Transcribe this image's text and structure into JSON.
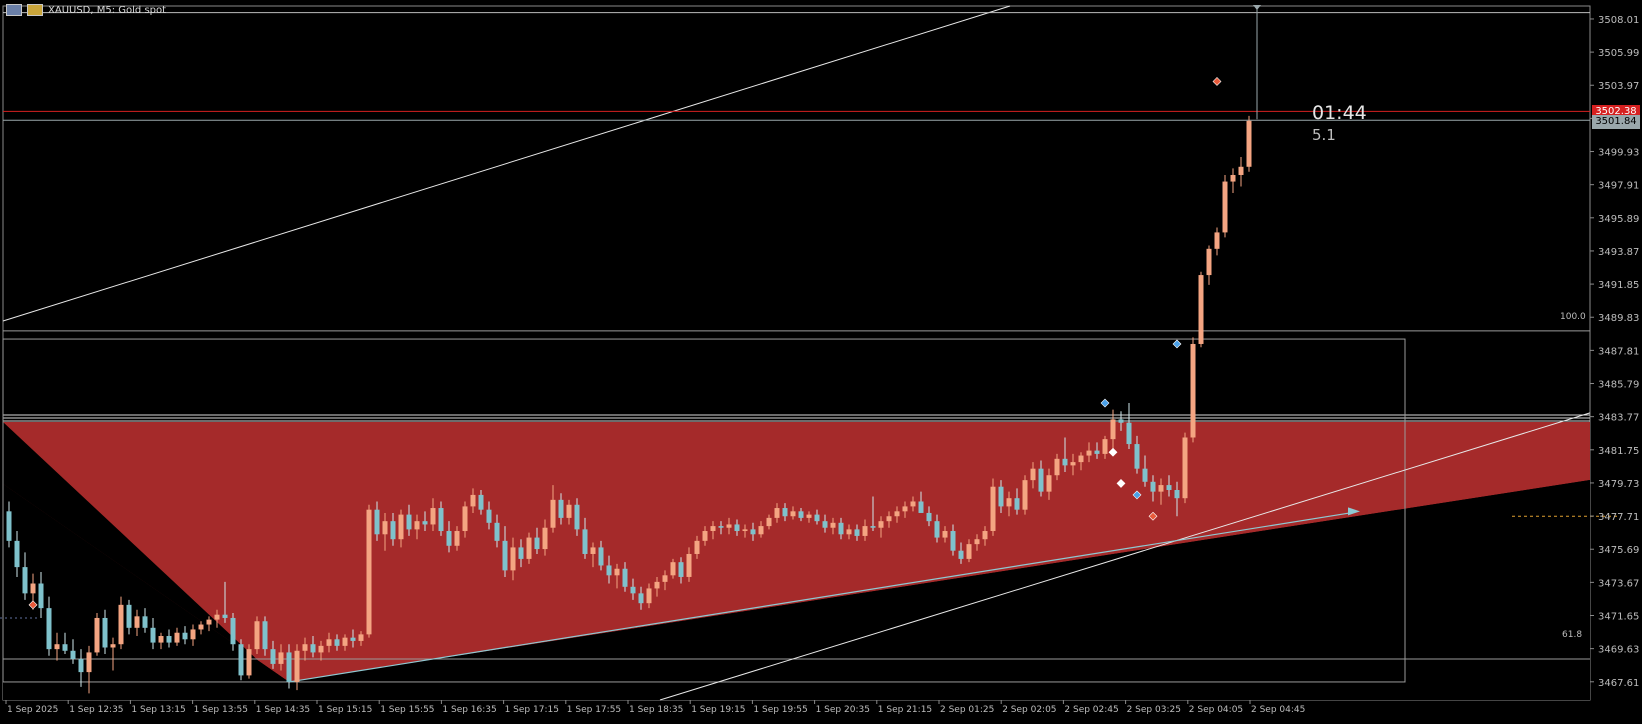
{
  "chart_header": {
    "symbol": "XAUUSD, M5:  Gold spot"
  },
  "timer": {
    "countdown": "01:44",
    "spread": "5.1"
  },
  "price_tags": {
    "ask": "3502.38",
    "bid": "3501.84"
  },
  "fib_labels": {
    "level_100": "100.0",
    "level_618": "61.8"
  },
  "colors": {
    "background": "#000000",
    "bull_candle": "#f4a582",
    "bear_candle": "#7fc2cc",
    "zone_fill": "#a52a2a",
    "ask_line": "#d62020",
    "grid_text": "#bdbdbd"
  },
  "chart_data": {
    "type": "candlestick",
    "y_ticks": [
      "3508.01",
      "3505.99",
      "3503.97",
      "3501.95",
      "3499.93",
      "3497.91",
      "3495.89",
      "3493.87",
      "3491.85",
      "3489.83",
      "3487.81",
      "3485.79",
      "3483.77",
      "3481.75",
      "3479.73",
      "3477.71",
      "3475.69",
      "3473.67",
      "3471.65",
      "3469.63",
      "3467.61"
    ],
    "x_ticks": [
      "1 Sep 2025",
      "1 Sep 12:35",
      "1 Sep 13:15",
      "1 Sep 13:55",
      "1 Sep 14:35",
      "1 Sep 15:15",
      "1 Sep 15:55",
      "1 Sep 16:35",
      "1 Sep 17:15",
      "1 Sep 17:55",
      "1 Sep 18:35",
      "1 Sep 19:15",
      "1 Sep 19:55",
      "1 Sep 20:35",
      "1 Sep 21:15",
      "2 Sep 01:25",
      "2 Sep 02:05",
      "2 Sep 02:45",
      "2 Sep 03:25",
      "2 Sep 04:05",
      "2 Sep 04:45"
    ],
    "ylim": [
      3466.5,
      3508.8
    ],
    "levels": {
      "ask": 3502.38,
      "bid": 3501.84,
      "upper_h1": 3508.4,
      "fib_100": 3489.0,
      "fib_618": 3469.0,
      "box_top": 3488.5,
      "box_bottom": 3467.6
    },
    "candles": [
      [
        3478.0,
        3478.6,
        3475.8,
        3476.2
      ],
      [
        3476.2,
        3476.8,
        3474.0,
        3474.6
      ],
      [
        3474.6,
        3475.5,
        3472.6,
        3473.0
      ],
      [
        3473.0,
        3474.2,
        3472.0,
        3473.6
      ],
      [
        3473.6,
        3474.3,
        3471.5,
        3472.1
      ],
      [
        3472.1,
        3472.8,
        3469.2,
        3469.6
      ],
      [
        3469.6,
        3470.6,
        3468.9,
        3469.9
      ],
      [
        3469.9,
        3470.6,
        3469.3,
        3469.5
      ],
      [
        3469.5,
        3470.2,
        3468.7,
        3469.0
      ],
      [
        3469.0,
        3469.6,
        3467.3,
        3468.2
      ],
      [
        3468.2,
        3469.8,
        3466.9,
        3469.4
      ],
      [
        3469.4,
        3471.8,
        3469.2,
        3471.5
      ],
      [
        3471.5,
        3472.0,
        3469.3,
        3469.7
      ],
      [
        3469.7,
        3470.3,
        3468.3,
        3469.9
      ],
      [
        3469.9,
        3472.8,
        3469.6,
        3472.3
      ],
      [
        3472.3,
        3472.6,
        3470.5,
        3470.9
      ],
      [
        3470.9,
        3472.0,
        3470.4,
        3471.6
      ],
      [
        3471.6,
        3472.1,
        3470.6,
        3470.9
      ],
      [
        3470.9,
        3471.5,
        3469.6,
        3470.0
      ],
      [
        3470.0,
        3470.6,
        3469.6,
        3470.4
      ],
      [
        3470.4,
        3470.8,
        3469.7,
        3470.0
      ],
      [
        3470.0,
        3470.9,
        3469.8,
        3470.6
      ],
      [
        3470.6,
        3471.0,
        3469.9,
        3470.2
      ],
      [
        3470.2,
        3471.1,
        3469.8,
        3470.8
      ],
      [
        3470.8,
        3471.3,
        3470.5,
        3471.1
      ],
      [
        3471.1,
        3471.6,
        3470.7,
        3471.4
      ],
      [
        3471.4,
        3472.0,
        3470.9,
        3471.7
      ],
      [
        3471.7,
        3473.7,
        3471.2,
        3471.5
      ],
      [
        3471.5,
        3471.8,
        3469.5,
        3469.9
      ],
      [
        3469.9,
        3470.2,
        3467.7,
        3468.0
      ],
      [
        3468.0,
        3469.9,
        3467.8,
        3469.6
      ],
      [
        3469.6,
        3471.6,
        3469.3,
        3471.3
      ],
      [
        3471.3,
        3471.6,
        3469.2,
        3469.6
      ],
      [
        3469.6,
        3470.1,
        3468.4,
        3468.7
      ],
      [
        3468.7,
        3469.9,
        3468.3,
        3469.4
      ],
      [
        3469.4,
        3469.9,
        3467.2,
        3467.6
      ],
      [
        3467.6,
        3469.9,
        3467.1,
        3469.5
      ],
      [
        3469.5,
        3470.3,
        3468.9,
        3469.9
      ],
      [
        3469.9,
        3470.4,
        3469.1,
        3469.4
      ],
      [
        3469.4,
        3470.1,
        3468.9,
        3469.8
      ],
      [
        3469.8,
        3470.6,
        3469.4,
        3470.2
      ],
      [
        3470.2,
        3470.5,
        3469.5,
        3469.8
      ],
      [
        3469.8,
        3470.5,
        3469.5,
        3470.3
      ],
      [
        3470.3,
        3470.8,
        3469.7,
        3470.1
      ],
      [
        3470.1,
        3470.7,
        3469.8,
        3470.5
      ],
      [
        3470.5,
        3478.4,
        3470.3,
        3478.1
      ],
      [
        3478.1,
        3478.6,
        3476.2,
        3476.6
      ],
      [
        3476.6,
        3477.9,
        3475.6,
        3477.4
      ],
      [
        3477.4,
        3477.9,
        3475.9,
        3476.3
      ],
      [
        3476.3,
        3478.1,
        3475.8,
        3477.8
      ],
      [
        3477.8,
        3478.4,
        3476.5,
        3476.9
      ],
      [
        3476.9,
        3477.8,
        3476.3,
        3477.4
      ],
      [
        3477.4,
        3478.0,
        3476.8,
        3477.2
      ],
      [
        3477.2,
        3478.8,
        3476.8,
        3478.2
      ],
      [
        3478.2,
        3478.6,
        3476.5,
        3476.8
      ],
      [
        3476.8,
        3477.4,
        3475.5,
        3475.9
      ],
      [
        3475.9,
        3477.1,
        3475.6,
        3476.8
      ],
      [
        3476.8,
        3478.6,
        3476.4,
        3478.3
      ],
      [
        3478.3,
        3479.4,
        3477.9,
        3479.0
      ],
      [
        3479.0,
        3479.3,
        3477.8,
        3478.1
      ],
      [
        3478.1,
        3478.6,
        3476.9,
        3477.3
      ],
      [
        3477.3,
        3477.8,
        3475.8,
        3476.2
      ],
      [
        3476.2,
        3477.1,
        3474.0,
        3474.4
      ],
      [
        3474.4,
        3476.4,
        3473.8,
        3475.8
      ],
      [
        3475.8,
        3476.3,
        3474.6,
        3475.1
      ],
      [
        3475.1,
        3476.7,
        3474.8,
        3476.4
      ],
      [
        3476.4,
        3477.0,
        3475.4,
        3475.7
      ],
      [
        3475.7,
        3477.5,
        3475.3,
        3477.0
      ],
      [
        3477.0,
        3479.6,
        3476.7,
        3478.7
      ],
      [
        3478.7,
        3479.1,
        3477.2,
        3477.6
      ],
      [
        3477.6,
        3478.7,
        3477.2,
        3478.4
      ],
      [
        3478.4,
        3478.8,
        3476.5,
        3476.9
      ],
      [
        3476.9,
        3477.6,
        3475.1,
        3475.4
      ],
      [
        3475.4,
        3476.1,
        3474.6,
        3475.8
      ],
      [
        3475.8,
        3476.2,
        3474.4,
        3474.7
      ],
      [
        3474.7,
        3475.3,
        3473.6,
        3474.1
      ],
      [
        3474.1,
        3474.8,
        3473.3,
        3474.5
      ],
      [
        3474.5,
        3474.9,
        3473.1,
        3473.4
      ],
      [
        3473.4,
        3473.9,
        3472.6,
        3473.0
      ],
      [
        3473.0,
        3473.4,
        3472.0,
        3472.4
      ],
      [
        3472.4,
        3473.6,
        3472.1,
        3473.3
      ],
      [
        3473.3,
        3474.0,
        3472.8,
        3473.7
      ],
      [
        3473.7,
        3474.4,
        3473.2,
        3474.1
      ],
      [
        3474.1,
        3475.1,
        3473.9,
        3474.9
      ],
      [
        3474.9,
        3475.2,
        3473.6,
        3474.0
      ],
      [
        3474.0,
        3475.8,
        3473.7,
        3475.4
      ],
      [
        3475.4,
        3476.5,
        3475.1,
        3476.2
      ],
      [
        3476.2,
        3477.1,
        3475.9,
        3476.8
      ],
      [
        3476.8,
        3477.4,
        3476.3,
        3477.1
      ],
      [
        3477.1,
        3477.4,
        3476.6,
        3477.0
      ],
      [
        3477.0,
        3477.6,
        3476.6,
        3477.2
      ],
      [
        3477.2,
        3477.5,
        3476.5,
        3476.8
      ],
      [
        3476.8,
        3477.2,
        3476.4,
        3476.9
      ],
      [
        3476.9,
        3477.3,
        3476.2,
        3476.6
      ],
      [
        3476.6,
        3477.4,
        3476.4,
        3477.1
      ],
      [
        3477.1,
        3477.8,
        3476.9,
        3477.6
      ],
      [
        3477.6,
        3478.5,
        3477.3,
        3478.2
      ],
      [
        3478.2,
        3478.5,
        3477.4,
        3477.7
      ],
      [
        3477.7,
        3478.3,
        3477.5,
        3478.0
      ],
      [
        3478.0,
        3478.2,
        3477.4,
        3477.6
      ],
      [
        3477.6,
        3478.0,
        3477.3,
        3477.8
      ],
      [
        3477.8,
        3478.1,
        3477.2,
        3477.4
      ],
      [
        3477.4,
        3477.8,
        3476.7,
        3477.0
      ],
      [
        3477.0,
        3477.6,
        3476.6,
        3477.3
      ],
      [
        3477.3,
        3477.6,
        3476.3,
        3476.6
      ],
      [
        3476.6,
        3477.2,
        3476.3,
        3476.9
      ],
      [
        3476.9,
        3477.2,
        3476.2,
        3476.5
      ],
      [
        3476.5,
        3477.5,
        3476.2,
        3477.1
      ],
      [
        3477.1,
        3478.9,
        3476.8,
        3477.0
      ],
      [
        3477.0,
        3477.7,
        3476.4,
        3477.4
      ],
      [
        3477.4,
        3478.0,
        3477.0,
        3477.7
      ],
      [
        3477.7,
        3478.3,
        3477.3,
        3478.0
      ],
      [
        3478.0,
        3478.6,
        3477.6,
        3478.3
      ],
      [
        3478.3,
        3478.9,
        3478.0,
        3478.6
      ],
      [
        3478.6,
        3479.2,
        3478.2,
        3477.9
      ],
      [
        3477.9,
        3478.3,
        3477.1,
        3477.4
      ],
      [
        3477.4,
        3477.8,
        3476.1,
        3476.4
      ],
      [
        3476.4,
        3477.1,
        3476.1,
        3476.8
      ],
      [
        3476.8,
        3477.2,
        3475.3,
        3475.6
      ],
      [
        3475.6,
        3476.1,
        3474.8,
        3475.1
      ],
      [
        3475.1,
        3476.3,
        3474.9,
        3476.0
      ],
      [
        3476.0,
        3476.6,
        3475.6,
        3476.3
      ],
      [
        3476.3,
        3477.1,
        3475.9,
        3476.8
      ],
      [
        3476.8,
        3480.0,
        3476.5,
        3479.5
      ],
      [
        3479.5,
        3479.9,
        3477.9,
        3478.3
      ],
      [
        3478.3,
        3479.2,
        3477.7,
        3478.8
      ],
      [
        3478.8,
        3479.4,
        3477.8,
        3478.1
      ],
      [
        3478.1,
        3480.2,
        3477.8,
        3479.9
      ],
      [
        3479.9,
        3481.0,
        3479.4,
        3480.6
      ],
      [
        3480.6,
        3481.1,
        3478.9,
        3479.2
      ],
      [
        3479.2,
        3480.6,
        3478.7,
        3480.2
      ],
      [
        3480.2,
        3481.5,
        3479.9,
        3481.2
      ],
      [
        3481.2,
        3482.5,
        3480.4,
        3480.8
      ],
      [
        3480.8,
        3481.5,
        3480.2,
        3481.0
      ],
      [
        3481.0,
        3481.6,
        3480.5,
        3481.4
      ],
      [
        3481.4,
        3482.2,
        3481.0,
        3481.7
      ],
      [
        3481.7,
        3482.2,
        3481.2,
        3481.5
      ],
      [
        3481.5,
        3482.6,
        3481.2,
        3482.4
      ],
      [
        3482.4,
        3484.2,
        3481.8,
        3483.6
      ],
      [
        3483.6,
        3484.1,
        3482.9,
        3483.4
      ],
      [
        3483.4,
        3484.6,
        3481.8,
        3482.1
      ],
      [
        3482.1,
        3482.6,
        3480.3,
        3480.6
      ],
      [
        3480.6,
        3481.4,
        3479.5,
        3479.8
      ],
      [
        3479.8,
        3480.2,
        3478.6,
        3479.2
      ],
      [
        3479.2,
        3480.0,
        3478.4,
        3479.6
      ],
      [
        3479.6,
        3480.2,
        3478.9,
        3479.3
      ],
      [
        3479.3,
        3479.8,
        3477.7,
        3478.8
      ],
      [
        3478.8,
        3482.8,
        3478.5,
        3482.5
      ],
      [
        3482.5,
        3488.6,
        3482.2,
        3488.2
      ],
      [
        3488.2,
        3492.6,
        3488.0,
        3492.4
      ],
      [
        3492.4,
        3494.2,
        3491.8,
        3494.0
      ],
      [
        3494.0,
        3495.3,
        3493.6,
        3495.0
      ],
      [
        3495.0,
        3498.5,
        3494.7,
        3498.1
      ],
      [
        3498.1,
        3498.9,
        3497.4,
        3498.5
      ],
      [
        3498.5,
        3499.6,
        3497.8,
        3499.0
      ],
      [
        3499.0,
        3502.1,
        3498.7,
        3501.8
      ]
    ],
    "markers": [
      {
        "t": 3,
        "price": 3472.3,
        "kind": "sell"
      },
      {
        "t": 137,
        "price": 3484.6,
        "kind": "buy"
      },
      {
        "t": 138,
        "price": 3481.6,
        "kind": "exit"
      },
      {
        "t": 139,
        "price": 3479.7,
        "kind": "exit"
      },
      {
        "t": 141,
        "price": 3479.0,
        "kind": "buy"
      },
      {
        "t": 143,
        "price": 3477.7,
        "kind": "sell"
      },
      {
        "t": 146,
        "price": 3488.2,
        "kind": "buy"
      },
      {
        "t": 151,
        "price": 3504.2,
        "kind": "sell"
      }
    ]
  }
}
